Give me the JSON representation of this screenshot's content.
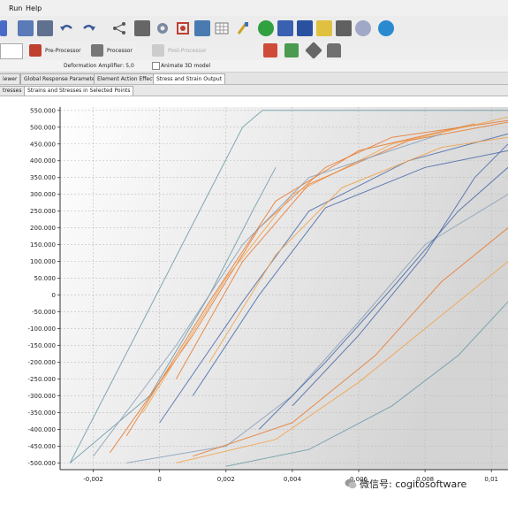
{
  "menu": {
    "items": [
      "Run",
      "Help"
    ]
  },
  "toolbar2": {
    "preprocessor_label": "Pre-Processor",
    "processor_label": "Processor",
    "postprocessor_label": "Post-Processor"
  },
  "infobar": {
    "deformation_amplifier_label": "Deformation Amplifier: 5,0",
    "animate_label": "Animate 3D model"
  },
  "tabs_row1": [
    "iewer",
    "Global Response Parameters",
    "Element Action Effects",
    "Stress and Strain Output"
  ],
  "tabs_row2": [
    "tresses",
    "Strains and Stresses in Selected Points"
  ],
  "watermark": "微信号: cogitosoftware",
  "colors": {
    "orange": "#e87a30",
    "light_orange": "#f2a24a",
    "blue": "#4a6aa8",
    "teal": "#6c9aa8",
    "gray_blue": "#8aa0b8"
  },
  "chart_data": {
    "type": "line",
    "title": "",
    "xlabel": "",
    "ylabel": "",
    "xlim": [
      -0.003,
      0.0105
    ],
    "ylim": [
      -520,
      560
    ],
    "x_ticks": [
      -0.002,
      0,
      0.002,
      0.004,
      0.006,
      0.008,
      0.01
    ],
    "x_tick_labels": [
      "-0,002",
      "0",
      "0,002",
      "0,004",
      "0,006",
      "0,008",
      "0,01"
    ],
    "y_ticks": [
      550,
      500,
      450,
      400,
      350,
      300,
      250,
      200,
      150,
      100,
      50,
      0,
      -50,
      -100,
      -150,
      -200,
      -250,
      -300,
      -350,
      -400,
      -450,
      -500
    ],
    "y_tick_labels": [
      "550.000",
      "500.000",
      "450.000",
      "400.000",
      "350.000",
      "300.000",
      "250.000",
      "200.000",
      "150.000",
      "100.000",
      "50.000",
      "0",
      "-50.000",
      "-100.000",
      "-150.000",
      "-200.000",
      "-250.000",
      "-300.000",
      "-350.000",
      "-400.000",
      "-450.000",
      "-500.000"
    ],
    "grid": true,
    "series": [
      {
        "color": "#6c9aa8",
        "points": [
          [
            -0.0027,
            -500
          ],
          [
            0.0025,
            500
          ],
          [
            0.0031,
            550
          ],
          [
            0.0105,
            550
          ]
        ]
      },
      {
        "color": "#6c9aa8",
        "points": [
          [
            -0.0027,
            -500
          ],
          [
            -0.0003,
            -300
          ],
          [
            0.0015,
            0
          ],
          [
            0.0028,
            250
          ],
          [
            0.0035,
            380
          ]
        ]
      },
      {
        "color": "#e87a30",
        "points": [
          [
            -0.0015,
            -470
          ],
          [
            0.001,
            -120
          ],
          [
            0.003,
            200
          ],
          [
            0.005,
            380
          ],
          [
            0.007,
            470
          ],
          [
            0.0105,
            520
          ]
        ]
      },
      {
        "color": "#e87a30",
        "points": [
          [
            -0.001,
            -420
          ],
          [
            0.0015,
            -20
          ],
          [
            0.0035,
            280
          ],
          [
            0.006,
            430
          ],
          [
            0.0095,
            510
          ]
        ]
      },
      {
        "color": "#f2a24a",
        "points": [
          [
            -0.0005,
            -350
          ],
          [
            0.002,
            50
          ],
          [
            0.004,
            300
          ],
          [
            0.007,
            450
          ],
          [
            0.0105,
            530
          ]
        ]
      },
      {
        "color": "#4a6aa8",
        "points": [
          [
            0,
            -380
          ],
          [
            0.0025,
            -20
          ],
          [
            0.0045,
            250
          ],
          [
            0.0075,
            400
          ],
          [
            0.0105,
            480
          ]
        ]
      },
      {
        "color": "#4a6aa8",
        "points": [
          [
            0.001,
            -300
          ],
          [
            0.003,
            0
          ],
          [
            0.005,
            260
          ],
          [
            0.008,
            380
          ],
          [
            0.0105,
            430
          ]
        ]
      },
      {
        "color": "#8aa0b8",
        "points": [
          [
            0.0105,
            300
          ],
          [
            0.008,
            150
          ],
          [
            0.006,
            -80
          ],
          [
            0.004,
            -300
          ],
          [
            0.002,
            -450
          ],
          [
            -0.001,
            -500
          ]
        ]
      },
      {
        "color": "#e87a30",
        "points": [
          [
            0.0105,
            200
          ],
          [
            0.0085,
            40
          ],
          [
            0.0065,
            -180
          ],
          [
            0.004,
            -380
          ],
          [
            0.001,
            -480
          ]
        ]
      },
      {
        "color": "#f2a24a",
        "points": [
          [
            0.0105,
            100
          ],
          [
            0.0085,
            -60
          ],
          [
            0.006,
            -260
          ],
          [
            0.0035,
            -430
          ],
          [
            0.0005,
            -500
          ]
        ]
      },
      {
        "color": "#4a6aa8",
        "points": [
          [
            0.0105,
            380
          ],
          [
            0.009,
            250
          ],
          [
            0.007,
            20
          ],
          [
            0.005,
            -200
          ],
          [
            0.003,
            -400
          ]
        ]
      },
      {
        "color": "#6c9aa8",
        "points": [
          [
            0.0105,
            -20
          ],
          [
            0.009,
            -180
          ],
          [
            0.007,
            -330
          ],
          [
            0.0045,
            -460
          ],
          [
            0.002,
            -510
          ]
        ]
      },
      {
        "color": "#e87a30",
        "points": [
          [
            0.0005,
            -250
          ],
          [
            0.0025,
            100
          ],
          [
            0.0045,
            330
          ],
          [
            0.0075,
            460
          ],
          [
            0.0105,
            515
          ]
        ]
      },
      {
        "color": "#8aa0b8",
        "points": [
          [
            -0.002,
            -480
          ],
          [
            0.0005,
            -150
          ],
          [
            0.0025,
            150
          ],
          [
            0.0045,
            350
          ],
          [
            0.0085,
            480
          ]
        ]
      },
      {
        "color": "#f2a24a",
        "points": [
          [
            0.0015,
            -200
          ],
          [
            0.0035,
            120
          ],
          [
            0.0055,
            320
          ],
          [
            0.0085,
            440
          ],
          [
            0.0105,
            470
          ]
        ]
      },
      {
        "color": "#4a6aa8",
        "points": [
          [
            0.0105,
            450
          ],
          [
            0.0095,
            350
          ],
          [
            0.008,
            120
          ],
          [
            0.006,
            -120
          ],
          [
            0.004,
            -330
          ]
        ]
      }
    ]
  }
}
